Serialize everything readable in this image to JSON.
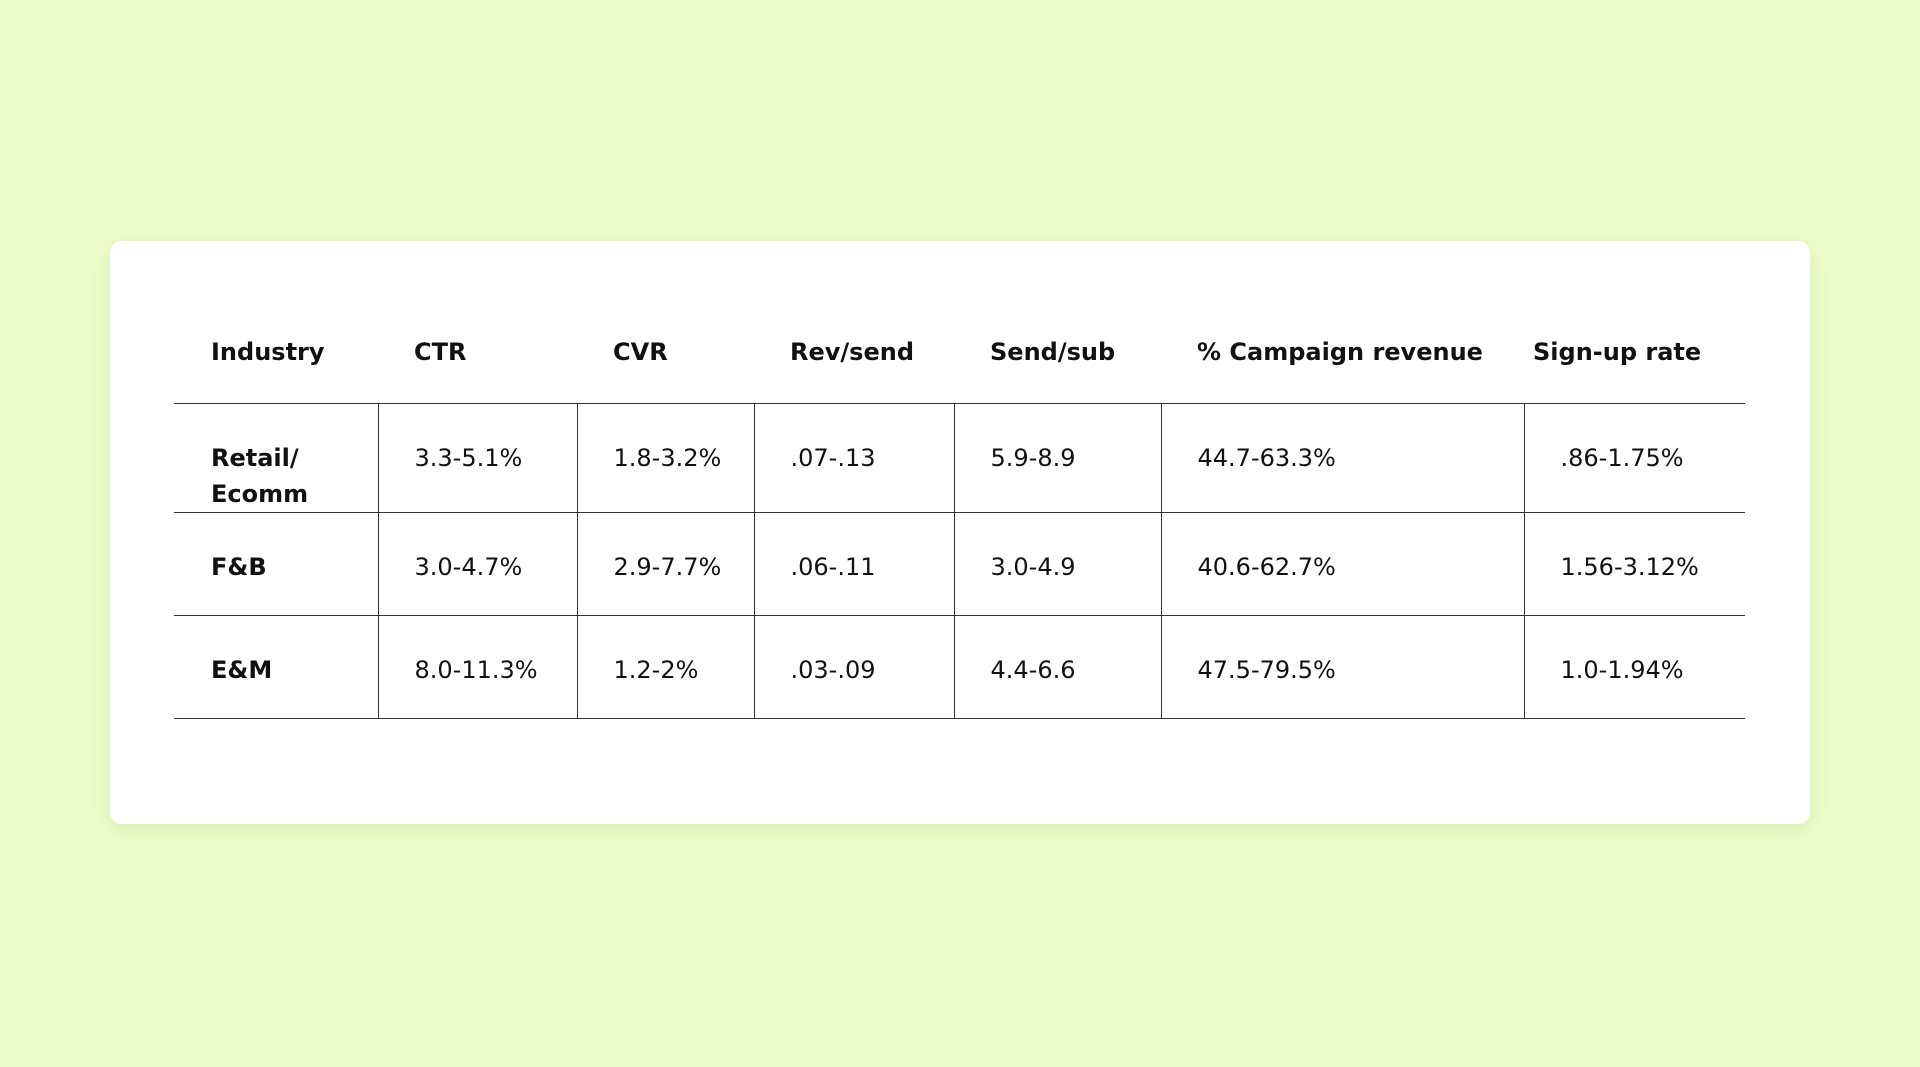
{
  "table": {
    "header": [
      "Industry",
      "CTR",
      "CVR",
      "Rev/send",
      "Send/sub",
      "% Campaign revenue",
      "Sign-up rate"
    ],
    "rows": [
      [
        "Retail/ Ecomm",
        "3.3-5.1%",
        "1.8-3.2%",
        ".07-.13",
        "5.9-8.9",
        "44.7-63.3%",
        ".86-1.75%"
      ],
      [
        "F&B",
        "3.0-4.7%",
        "2.9-7.7%",
        ".06-.11",
        "3.0-4.9",
        "40.6-62.7%",
        "1.56-3.12%"
      ],
      [
        "E&M",
        "8.0-11.3%",
        "1.2-2%",
        ".03-.09",
        "4.4-6.6",
        "47.5-79.5%",
        "1.0-1.94%"
      ]
    ]
  }
}
